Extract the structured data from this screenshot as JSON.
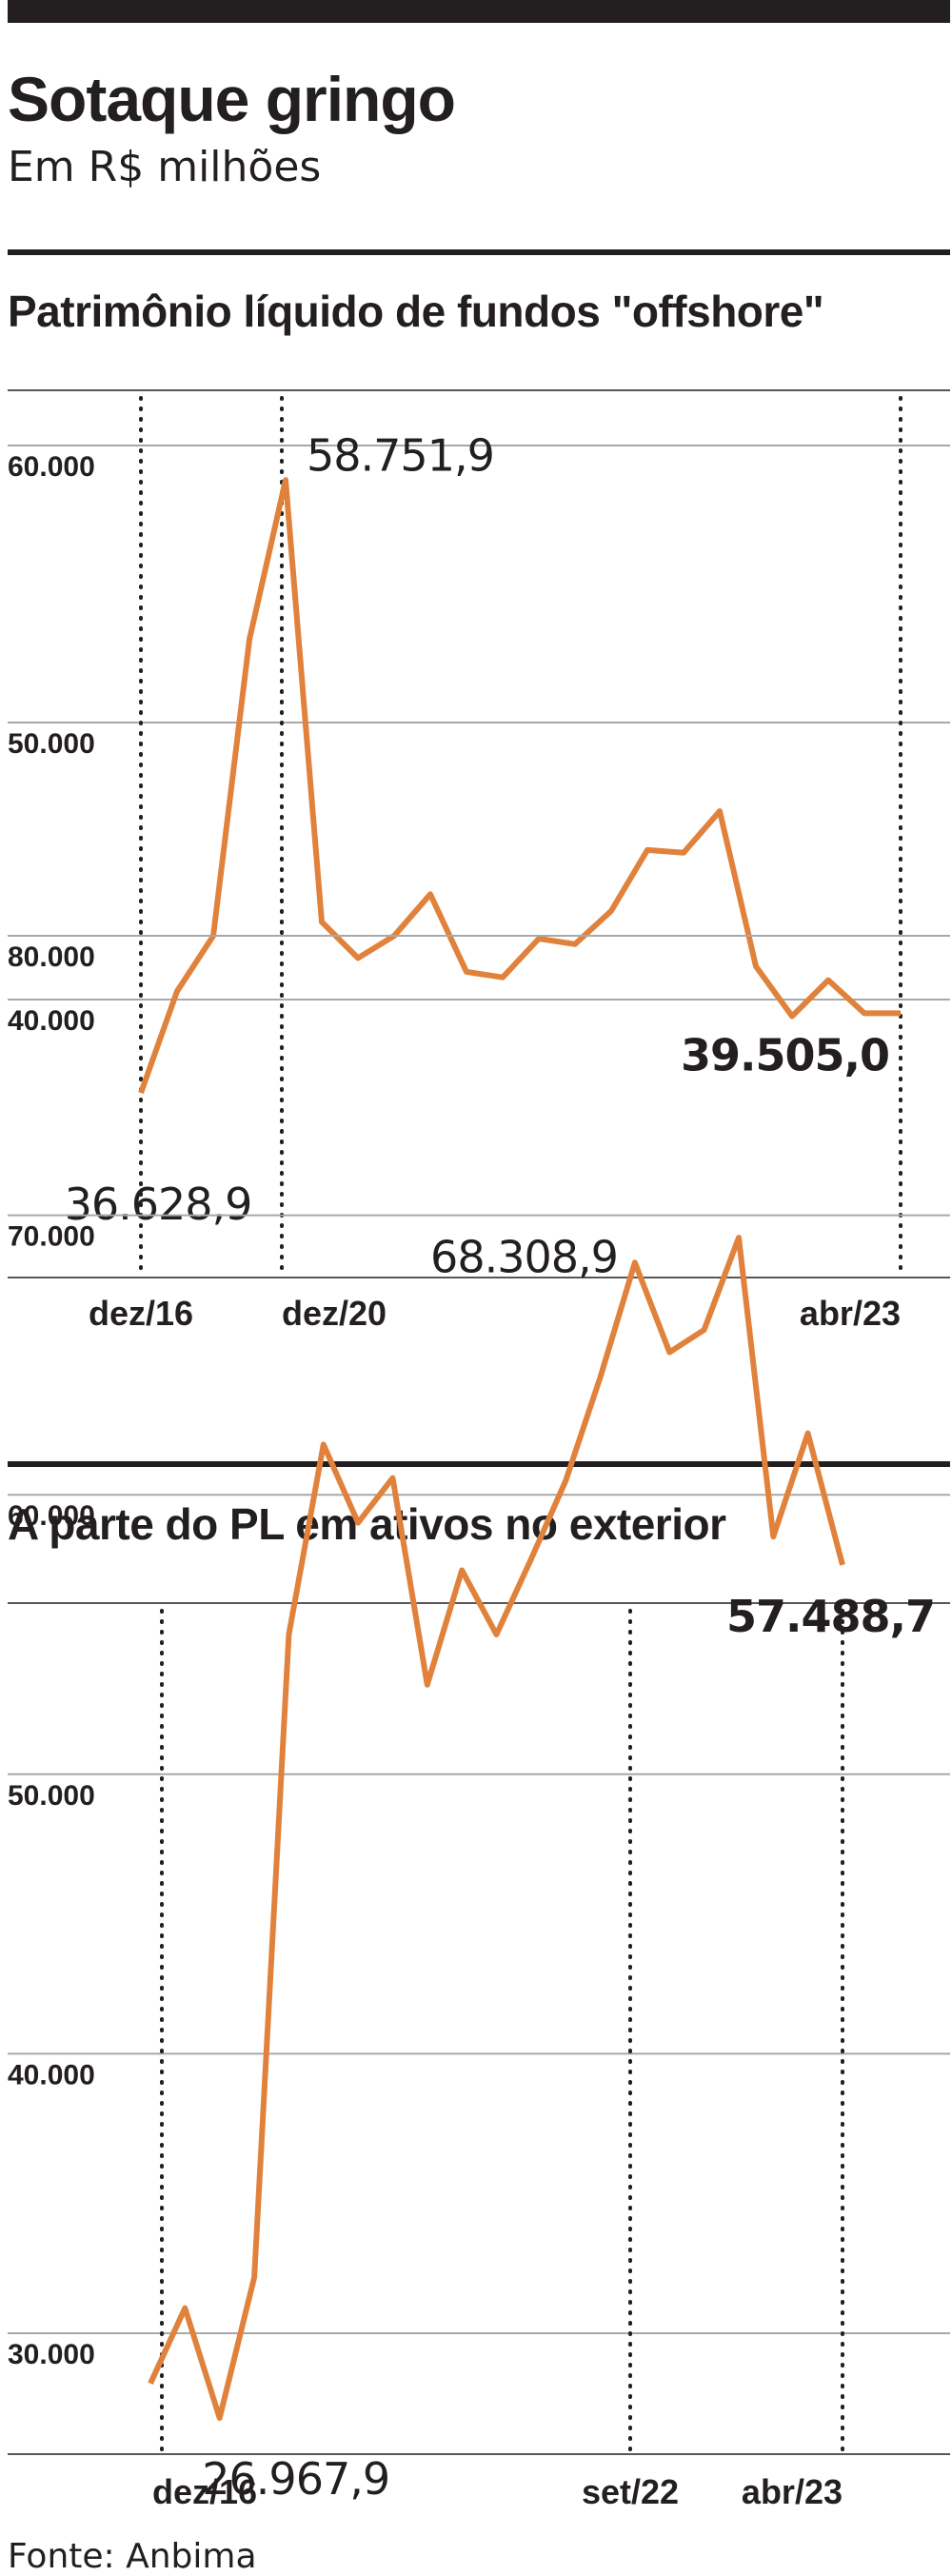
{
  "header": {
    "title": "Sotaque gringo",
    "subtitle": "Em R$ milhões"
  },
  "source": "Fonte: Anbima",
  "colors": {
    "line": "#e0823b",
    "grid": "#a8a8a8",
    "text": "#231f20"
  },
  "chart_data": [
    {
      "type": "line",
      "title": "Patrimônio líquido de fundos \"offshore\"",
      "ylim": [
        30000,
        62000
      ],
      "gridlines": [
        40000,
        50000,
        60000
      ],
      "y_tick_labels": [
        "40.000",
        "50.000",
        "60.000"
      ],
      "x_tick_labels": [
        "dez/16",
        "dez/20",
        "abr/23"
      ],
      "series": [
        {
          "values": [
            36628.9,
            40300,
            42300,
            53000,
            58751.9,
            42800,
            41500,
            42300,
            43800,
            41000,
            40800,
            42200,
            42000,
            43200,
            45400,
            45300,
            46800,
            41200,
            39400,
            40700,
            39505,
            39505
          ]
        }
      ],
      "annotations": [
        {
          "text": "36.628,9",
          "point_index": 0
        },
        {
          "text": "58.751,9",
          "point_index": 4
        },
        {
          "text": "39.505,0",
          "point_index": 21
        }
      ]
    },
    {
      "type": "line",
      "title": "A parte do PL em ativos no exterior",
      "ylim": [
        20000,
        81000
      ],
      "gridlines": [
        30000,
        40000,
        50000,
        60000,
        70000,
        80000
      ],
      "y_tick_labels": [
        "30.000",
        "40.000",
        "50.000",
        "60.000",
        "70.000",
        "80.000"
      ],
      "x_tick_labels": [
        "dez/16",
        "set/22",
        "abr/23"
      ],
      "series": [
        {
          "values": [
            28200,
            30900,
            26967.9,
            32000,
            55000,
            61800,
            59000,
            60600,
            53200,
            57300,
            55000,
            57700,
            60500,
            64200,
            68308.9,
            65100,
            65900,
            69200,
            58500,
            62200,
            57488.7
          ]
        }
      ],
      "annotations": [
        {
          "text": "26.967,9",
          "point_index": 2
        },
        {
          "text": "68.308,9",
          "point_index": 14
        },
        {
          "text": "57.488,7",
          "point_index": 20
        }
      ]
    }
  ]
}
